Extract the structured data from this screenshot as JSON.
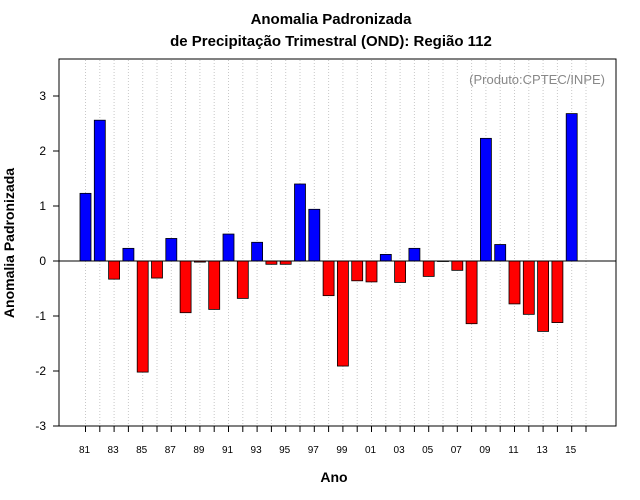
{
  "chart_data": {
    "type": "bar",
    "title_line1": "Anomalia Padronizada",
    "title_line2": "de Precipitação Trimestral (OND): Região 112",
    "xlabel": "Ano",
    "ylabel": "Anomalia Padronizada",
    "credit": "(Produto:CPTEC/INPE)",
    "ylim": [
      -3,
      3.7
    ],
    "y_ticks": [
      -3,
      -2,
      -1,
      0,
      1,
      2,
      3
    ],
    "y_tick_labels": [
      "-3",
      "-2",
      "-1",
      "0",
      "1",
      "2",
      "3"
    ],
    "x_tick_labels": [
      "81",
      "83",
      "85",
      "87",
      "89",
      "91",
      "93",
      "95",
      "97",
      "99",
      "01",
      "03",
      "05",
      "07",
      "09",
      "11",
      "13",
      "15"
    ],
    "categories": [
      "1981",
      "1982",
      "1983",
      "1984",
      "1985",
      "1986",
      "1987",
      "1988",
      "1989",
      "1990",
      "1991",
      "1992",
      "1993",
      "1994",
      "1995",
      "1996",
      "1997",
      "1998",
      "1999",
      "2000",
      "2001",
      "2002",
      "2003",
      "2004",
      "2005",
      "2006",
      "2007",
      "2008",
      "2009",
      "2010",
      "2011",
      "2012",
      "2013",
      "2014",
      "2015"
    ],
    "values": [
      1.23,
      2.56,
      -0.33,
      0.23,
      -2.02,
      -0.31,
      0.41,
      -0.94,
      -0.02,
      -0.88,
      0.49,
      -0.68,
      0.34,
      -0.06,
      -0.06,
      1.4,
      0.94,
      -0.63,
      -1.91,
      -0.36,
      -0.38,
      0.12,
      -0.39,
      0.23,
      -0.28,
      0.0,
      -0.17,
      -1.14,
      2.23,
      0.3,
      -0.78,
      -0.97,
      -1.28,
      -1.12,
      2.68
    ],
    "colors": {
      "positive": "#0000ff",
      "negative": "#ff0000",
      "grid": "#c8c8c8",
      "axis": "#000000"
    }
  }
}
